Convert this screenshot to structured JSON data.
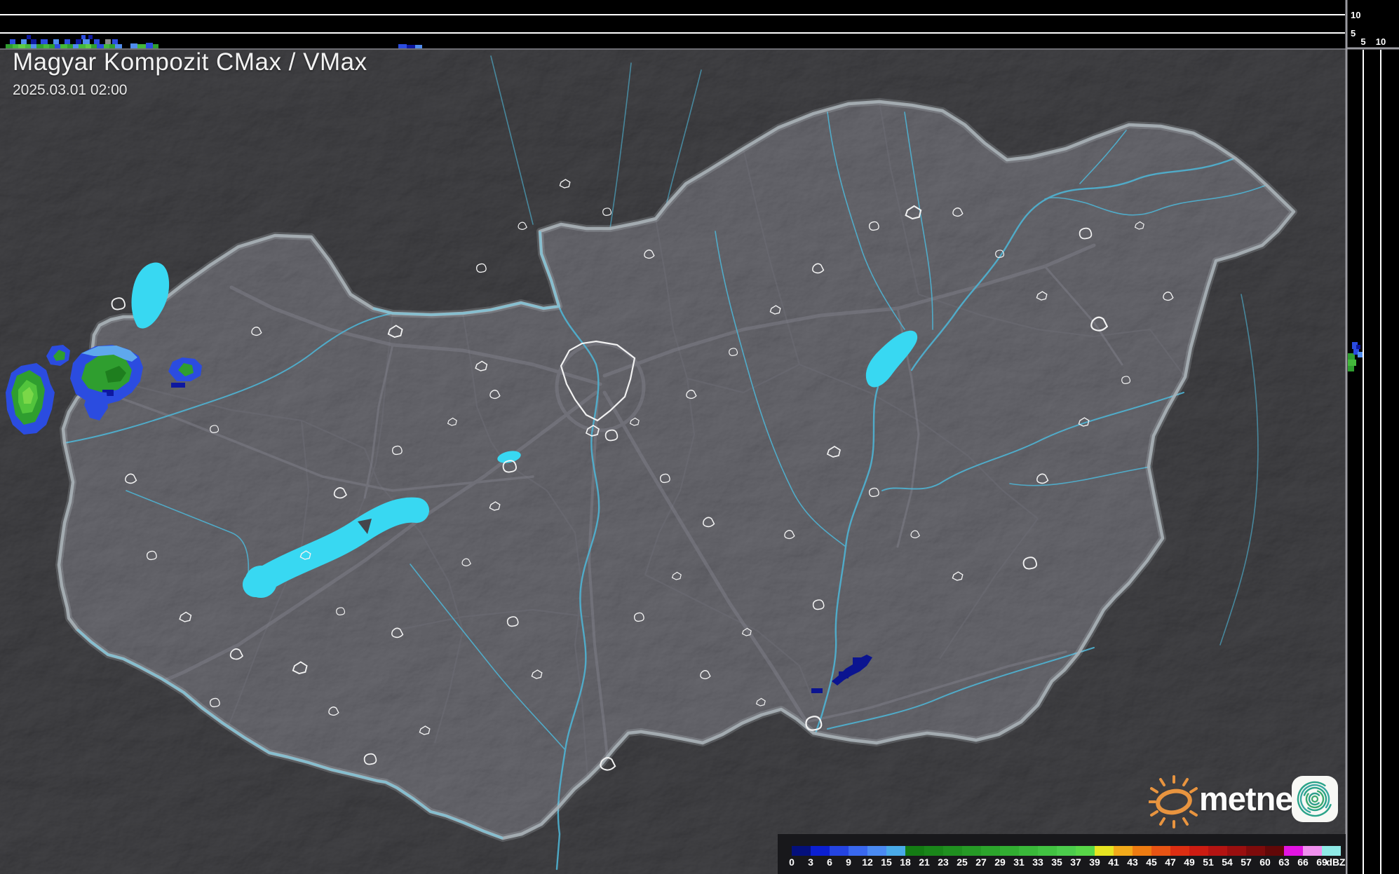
{
  "header": {
    "title": "Magyar Kompozit CMax / VMax",
    "timestamp": "2025.03.01 02:00"
  },
  "profiles": {
    "top_axis": [
      "10",
      "5"
    ],
    "right_axis": [
      "5",
      "10"
    ]
  },
  "legend": {
    "unit": "dBZ",
    "ticks": [
      "0",
      "3",
      "6",
      "9",
      "12",
      "15",
      "18",
      "21",
      "23",
      "25",
      "27",
      "29",
      "31",
      "33",
      "35",
      "37",
      "39",
      "41",
      "43",
      "45",
      "47",
      "49",
      "51",
      "54",
      "57",
      "60",
      "63",
      "66",
      "69"
    ],
    "colors": [
      "#04107c",
      "#0b1fd2",
      "#2444e2",
      "#3968ee",
      "#4a8af2",
      "#49aae8",
      "#147c14",
      "#1a861a",
      "#209020",
      "#269a26",
      "#2ca42c",
      "#32ae32",
      "#3ab83a",
      "#42c242",
      "#4ccc4c",
      "#58d648",
      "#e6e422",
      "#f2aa1a",
      "#ee7c12",
      "#e85414",
      "#dc2e12",
      "#cc1c12",
      "#b41412",
      "#9a0f0f",
      "#7e0b0b",
      "#620808",
      "#e214e2",
      "#f090ee",
      "#8fe9e6"
    ]
  },
  "branding": {
    "logo_text": "metnet"
  },
  "radar_echoes": [
    {
      "region": "northwest near Austrian border",
      "appearance": "green cores with blue fringes",
      "approx_dbz": "3-33"
    },
    {
      "region": "southeast near Szeged",
      "appearance": "dark navy diagonal streak",
      "approx_dbz": "0-6"
    }
  ]
}
